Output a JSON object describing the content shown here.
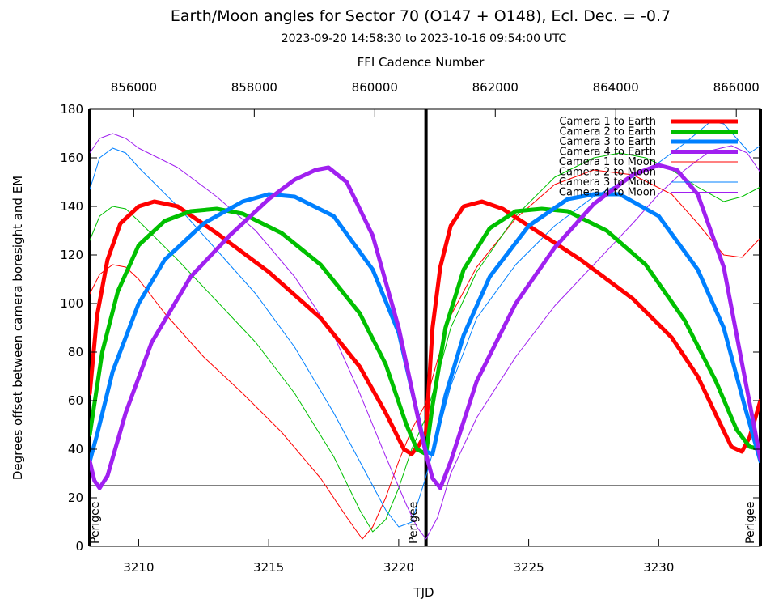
{
  "chart_data": {
    "type": "line",
    "title": "Earth/Moon angles for Sector 70 (O147 + O148), Ecl. Dec. = -0.7",
    "subtitle": "2023-09-20 14:58:30 to 2023-10-16 09:54:00 UTC",
    "xlabel": "TJD",
    "ylabel": "Degrees offset between camera boresight and EM",
    "x2label": "FFI Cadence Number",
    "xlim": [
      3208.12,
      3233.91
    ],
    "ylim": [
      0,
      180
    ],
    "x2lim": [
      855270,
      866400
    ],
    "x_ticks": [
      "3210",
      "3215",
      "3220",
      "3225",
      "3230"
    ],
    "x_tick_values": [
      3210,
      3215,
      3220,
      3225,
      3230
    ],
    "y_ticks": [
      "0",
      "20",
      "40",
      "60",
      "80",
      "100",
      "120",
      "140",
      "160",
      "180"
    ],
    "y_tick_values": [
      0,
      20,
      40,
      60,
      80,
      100,
      120,
      140,
      160,
      180
    ],
    "x2_ticks": [
      "856000",
      "858000",
      "860000",
      "862000",
      "864000",
      "866000"
    ],
    "x2_tick_values": [
      856000,
      858000,
      860000,
      862000,
      864000,
      866000
    ],
    "orbit_boundaries": [
      3208.12,
      3221.05,
      3233.91
    ],
    "threshold": 25,
    "grid": false,
    "legend_position": "top-right",
    "annotations": [
      {
        "text": "Perigee",
        "x": 3208.3
      },
      {
        "text": "Perigee",
        "x": 3220.55
      },
      {
        "text": "Perigee",
        "x": 3233.5
      }
    ],
    "series": [
      {
        "name": "Camera 1 to Earth",
        "color": "#ff0000",
        "width": 5,
        "x": [
          3208.12,
          3208.4,
          3208.8,
          3209.3,
          3210.0,
          3210.6,
          3211.5,
          3213.0,
          3215.0,
          3217.0,
          3218.5,
          3219.5,
          3220.2,
          3220.5,
          3220.8,
          3221.05,
          3221.3,
          3221.6,
          3222.0,
          3222.5,
          3223.2,
          3224.0,
          3225.0,
          3227.0,
          3229.0,
          3230.5,
          3231.5,
          3232.3,
          3232.8,
          3233.2,
          3233.5,
          3233.91
        ],
        "y": [
          63,
          95,
          118,
          133,
          140,
          142,
          140,
          129,
          113,
          94,
          74,
          55,
          40,
          38,
          42,
          47,
          90,
          115,
          132,
          140,
          142,
          139,
          132,
          118,
          102,
          86,
          70,
          52,
          41,
          39,
          45,
          60
        ]
      },
      {
        "name": "Camera 2 to Earth",
        "color": "#00c000",
        "width": 5,
        "x": [
          3208.12,
          3208.6,
          3209.2,
          3210.0,
          3211.0,
          3212.0,
          3213.0,
          3214.0,
          3215.5,
          3217.0,
          3218.5,
          3219.5,
          3220.3,
          3220.7,
          3221.05,
          3221.3,
          3221.8,
          3222.5,
          3223.5,
          3224.5,
          3225.5,
          3226.5,
          3228.0,
          3229.5,
          3231.0,
          3232.2,
          3233.0,
          3233.5,
          3233.91
        ],
        "y": [
          46,
          80,
          105,
          124,
          134,
          138,
          139,
          137,
          129,
          116,
          96,
          75,
          50,
          40,
          38,
          58,
          90,
          114,
          131,
          138,
          139,
          138,
          130,
          116,
          93,
          68,
          48,
          41,
          40
        ]
      },
      {
        "name": "Camera 3 to Earth",
        "color": "#0080ff",
        "width": 5,
        "x": [
          3208.12,
          3208.4,
          3209.0,
          3210.0,
          3211.0,
          3212.5,
          3214.0,
          3215.0,
          3216.0,
          3217.5,
          3219.0,
          3220.0,
          3220.6,
          3221.05,
          3221.3,
          3221.8,
          3222.5,
          3223.5,
          3225.0,
          3226.5,
          3227.5,
          3228.5,
          3230.0,
          3231.5,
          3232.5,
          3233.3,
          3233.91
        ],
        "y": [
          35,
          46,
          72,
          100,
          118,
          133,
          142,
          145,
          144,
          136,
          114,
          88,
          60,
          39,
          38,
          62,
          87,
          111,
          132,
          143,
          145,
          145,
          136,
          114,
          90,
          58,
          35
        ]
      },
      {
        "name": "Camera 4 to Earth",
        "color": "#a020f0",
        "width": 5,
        "x": [
          3208.12,
          3208.3,
          3208.5,
          3208.8,
          3209.5,
          3210.5,
          3212.0,
          3213.5,
          3215.0,
          3216.0,
          3216.8,
          3217.3,
          3218.0,
          3219.0,
          3220.0,
          3220.7,
          3221.05,
          3221.3,
          3221.6,
          3222.0,
          3223.0,
          3224.5,
          3226.0,
          3227.5,
          3229.0,
          3230.0,
          3230.7,
          3231.5,
          3232.5,
          3233.3,
          3233.91
        ],
        "y": [
          35,
          27,
          24,
          29,
          55,
          84,
          111,
          128,
          143,
          151,
          155,
          156,
          150,
          128,
          90,
          55,
          38,
          28,
          24,
          35,
          68,
          100,
          123,
          141,
          153,
          157,
          155,
          145,
          115,
          70,
          36
        ]
      },
      {
        "name": "Camera 1 to Moon",
        "color": "#ff0000",
        "width": 1,
        "x": [
          3208.12,
          3208.5,
          3209.0,
          3209.5,
          3210.0,
          3211.0,
          3212.5,
          3214.0,
          3215.5,
          3217.0,
          3218.0,
          3218.6,
          3219.0,
          3219.5,
          3220.0,
          3220.5,
          3221.0,
          3221.5,
          3222.0,
          3223.0,
          3224.5,
          3226.0,
          3227.5,
          3229.0,
          3230.5,
          3231.5,
          3232.5,
          3233.2,
          3233.91
        ],
        "y": [
          104,
          112,
          116,
          115,
          110,
          96,
          78,
          63,
          47,
          28,
          12,
          3,
          8,
          20,
          35,
          48,
          58,
          77,
          95,
          115,
          135,
          149,
          155,
          153,
          145,
          133,
          120,
          119,
          127
        ]
      },
      {
        "name": "Camera 2 to Moon",
        "color": "#00c000",
        "width": 1,
        "x": [
          3208.12,
          3208.5,
          3209.0,
          3209.5,
          3210.0,
          3211.5,
          3213.0,
          3214.5,
          3216.0,
          3217.5,
          3218.5,
          3219.0,
          3219.5,
          3220.0,
          3220.5,
          3221.0,
          3221.5,
          3222.0,
          3223.0,
          3224.5,
          3226.0,
          3227.5,
          3228.5,
          3229.5,
          3230.5,
          3231.5,
          3232.5,
          3233.2,
          3233.91
        ],
        "y": [
          126,
          136,
          140,
          139,
          134,
          118,
          101,
          84,
          63,
          37,
          15,
          6,
          11,
          24,
          40,
          52,
          70,
          90,
          113,
          136,
          152,
          160,
          162,
          160,
          155,
          148,
          142,
          144,
          148
        ]
      },
      {
        "name": "Camera 3 to Moon",
        "color": "#0080ff",
        "width": 1,
        "x": [
          3208.12,
          3208.5,
          3209.0,
          3209.5,
          3210.0,
          3211.5,
          3213.0,
          3214.5,
          3216.0,
          3217.5,
          3218.5,
          3219.5,
          3220.0,
          3220.5,
          3221.0,
          3221.5,
          3222.0,
          3223.0,
          3224.5,
          3226.0,
          3227.5,
          3229.0,
          3230.0,
          3231.0,
          3232.0,
          3232.5,
          3233.0,
          3233.5,
          3233.91
        ],
        "y": [
          147,
          160,
          164,
          162,
          156,
          140,
          122,
          104,
          82,
          55,
          35,
          15,
          8,
          10,
          27,
          46,
          66,
          94,
          116,
          132,
          144,
          152,
          158,
          166,
          175,
          174,
          168,
          162,
          165
        ]
      },
      {
        "name": "Camera 4 to Moon",
        "color": "#a020f0",
        "width": 1,
        "x": [
          3208.12,
          3208.5,
          3209.0,
          3209.5,
          3210.0,
          3211.5,
          3213.0,
          3214.5,
          3216.0,
          3217.5,
          3218.5,
          3219.5,
          3220.3,
          3220.7,
          3221.05,
          3221.5,
          3222.0,
          3223.0,
          3224.5,
          3226.0,
          3227.5,
          3229.0,
          3230.0,
          3231.0,
          3232.0,
          3232.8,
          3233.4,
          3233.91
        ],
        "y": [
          162,
          168,
          170,
          168,
          164,
          156,
          144,
          130,
          111,
          87,
          63,
          37,
          17,
          8,
          3,
          12,
          30,
          53,
          78,
          99,
          116,
          133,
          145,
          155,
          163,
          165,
          162,
          154
        ]
      }
    ]
  }
}
